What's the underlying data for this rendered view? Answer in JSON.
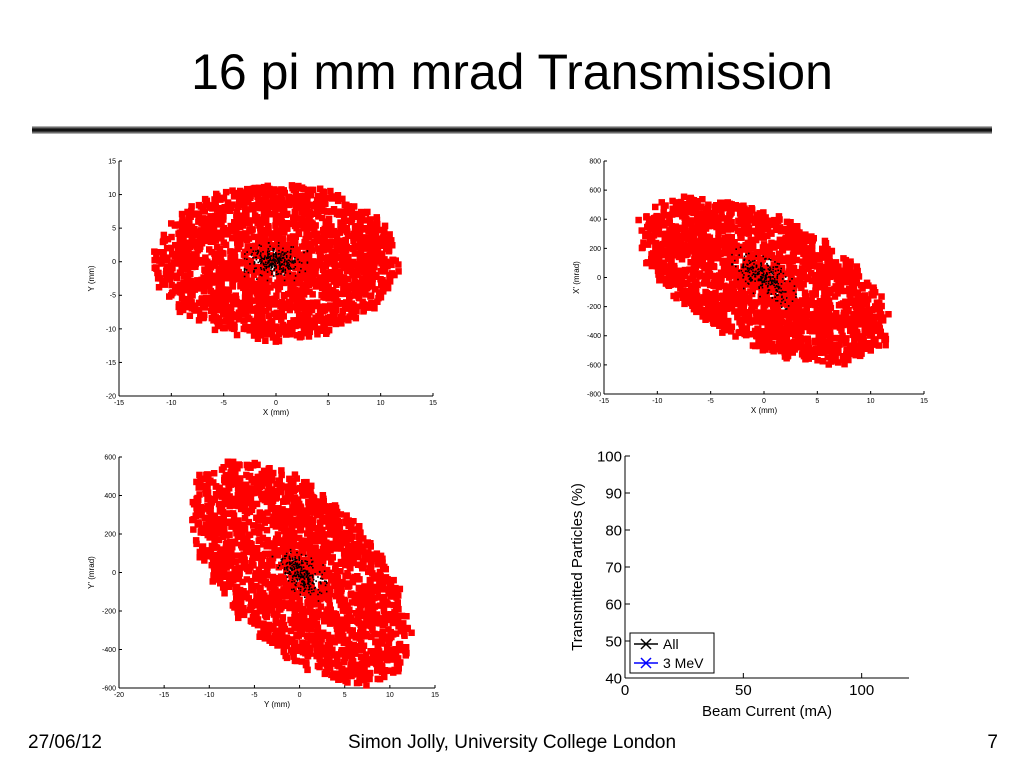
{
  "slide": {
    "title": "16 pi mm mrad Transmission",
    "footer_date": "27/06/12",
    "footer_center": "Simon Jolly, University College London",
    "page_number": "7"
  },
  "colors": {
    "beam": "#ff0000",
    "transmitted": "#000000",
    "series_all": "#000000",
    "series_3mev": "#0000ff"
  },
  "chart_data": [
    {
      "type": "scatter",
      "xlabel": "X (mm)",
      "ylabel": "Y (mm)",
      "xlim": [
        -15,
        15
      ],
      "ylim": [
        -20,
        15
      ],
      "xticks": [
        -15,
        -10,
        -5,
        0,
        5,
        10,
        15
      ],
      "yticks": [
        -20,
        -15,
        -10,
        -5,
        0,
        5,
        10,
        15
      ],
      "series": [
        {
          "color": "#ff0000",
          "distribution": {
            "center": [
              0,
              0
            ],
            "extent_x": 11.9,
            "extent_y": 12.0,
            "correlation": 0.0,
            "uniform_region": true
          }
        },
        {
          "color": "#000000",
          "distribution": {
            "center": [
              0,
              0
            ],
            "extent_x": 3.0,
            "extent_y": 2.8,
            "correlation": 0.0
          }
        }
      ]
    },
    {
      "type": "scatter",
      "xlabel": "X (mm)",
      "ylabel": "X' (mrad)",
      "xlim": [
        -15,
        15
      ],
      "ylim": [
        -800,
        800
      ],
      "xticks": [
        -15,
        -10,
        -5,
        0,
        5,
        10,
        15
      ],
      "yticks": [
        -800,
        -600,
        -400,
        -200,
        0,
        200,
        400,
        600,
        800
      ],
      "series": [
        {
          "color": "#ff0000",
          "distribution": {
            "center": [
              0,
              -20
            ],
            "extent_x": 12.0,
            "extent_y": 590,
            "correlation": -0.55,
            "uniform_region": true
          }
        },
        {
          "color": "#000000",
          "distribution": {
            "center": [
              0,
              0
            ],
            "extent_x": 3.0,
            "extent_y": 180,
            "correlation": -0.6
          }
        }
      ]
    },
    {
      "type": "scatter",
      "xlabel": "Y (mm)",
      "ylabel": "Y' (mrad)",
      "xlim": [
        -20,
        15
      ],
      "ylim": [
        -600,
        600
      ],
      "xticks": [
        -20,
        -15,
        -10,
        -5,
        0,
        5,
        10,
        15
      ],
      "yticks": [
        -600,
        -400,
        -200,
        0,
        200,
        400,
        600
      ],
      "series": [
        {
          "color": "#ff0000",
          "distribution": {
            "center": [
              0,
              0
            ],
            "extent_x": 12.5,
            "extent_y": 600,
            "correlation": -0.55,
            "uniform_region": true
          }
        },
        {
          "color": "#000000",
          "distribution": {
            "center": [
              0,
              0
            ],
            "extent_x": 3.0,
            "extent_y": 140,
            "correlation": -0.6
          }
        }
      ]
    },
    {
      "type": "line",
      "xlabel": "Beam Current (mA)",
      "ylabel": "Transmitted Particles (%)",
      "xlim": [
        0,
        120
      ],
      "ylim": [
        40,
        100
      ],
      "xticks": [
        0,
        50,
        100
      ],
      "yticks": [
        40,
        50,
        60,
        70,
        80,
        90,
        100
      ],
      "legend_position": "bottom-left",
      "series": [
        {
          "name": "All",
          "color": "#000000",
          "marker": "x",
          "x": [],
          "y": []
        },
        {
          "name": "3 MeV",
          "color": "#0000ff",
          "marker": "x",
          "x": [],
          "y": []
        }
      ]
    }
  ]
}
